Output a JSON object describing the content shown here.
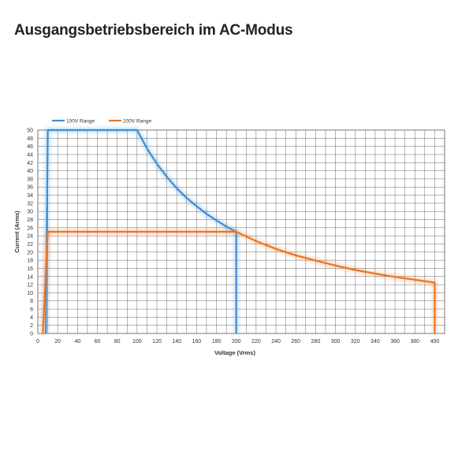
{
  "page": {
    "title": "Ausgangsbetriebsbereich im AC-Modus"
  },
  "chart_data": {
    "type": "line",
    "xlabel": "Voltage (Vrms)",
    "ylabel": "Current (Arms)",
    "xlim": [
      0,
      410
    ],
    "ylim": [
      0,
      50
    ],
    "x_ticks": [
      0,
      20,
      40,
      60,
      80,
      100,
      120,
      140,
      160,
      180,
      200,
      220,
      240,
      260,
      280,
      300,
      320,
      340,
      360,
      380,
      400
    ],
    "y_ticks": [
      0,
      2,
      4,
      6,
      8,
      10,
      12,
      14,
      16,
      18,
      20,
      22,
      24,
      26,
      28,
      30,
      32,
      34,
      36,
      38,
      40,
      42,
      44,
      46,
      48,
      50
    ],
    "grid": true,
    "legend_position": "top-left",
    "series": [
      {
        "name": "100V Range",
        "color": "#3d8fd6",
        "points": [
          [
            8,
            0
          ],
          [
            10,
            50
          ],
          [
            100,
            50
          ],
          [
            110,
            45.5
          ],
          [
            120,
            41.7
          ],
          [
            130,
            38.5
          ],
          [
            140,
            35.7
          ],
          [
            150,
            33.3
          ],
          [
            160,
            31.3
          ],
          [
            170,
            29.4
          ],
          [
            180,
            27.8
          ],
          [
            190,
            26.3
          ],
          [
            200,
            25
          ],
          [
            200,
            0
          ]
        ]
      },
      {
        "name": "200V Range",
        "color": "#ef7422",
        "points": [
          [
            5,
            0
          ],
          [
            10,
            25
          ],
          [
            200,
            25
          ],
          [
            220,
            22.7
          ],
          [
            240,
            20.8
          ],
          [
            260,
            19.2
          ],
          [
            280,
            17.9
          ],
          [
            300,
            16.7
          ],
          [
            320,
            15.6
          ],
          [
            340,
            14.7
          ],
          [
            360,
            13.9
          ],
          [
            380,
            13.2
          ],
          [
            400,
            12.5
          ],
          [
            400,
            0
          ]
        ]
      }
    ]
  }
}
